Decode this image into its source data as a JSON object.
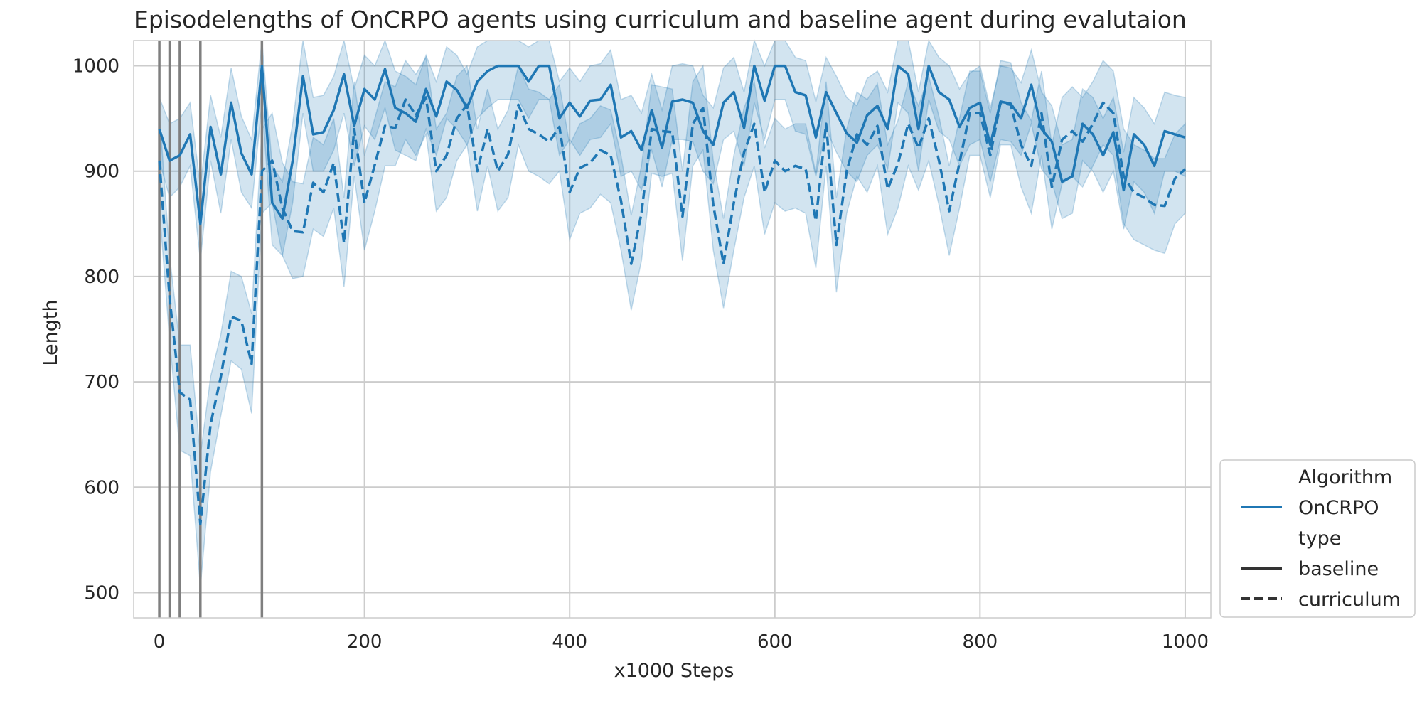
{
  "chart_data": {
    "type": "line",
    "title": "Episodelengths of OnCRPO agents using curriculum and baseline agent during evalutaion",
    "xlabel": "x1000 Steps",
    "ylabel": "Length",
    "xlim": [
      -25,
      1025
    ],
    "ylim": [
      476,
      1024
    ],
    "xticks": [
      0,
      200,
      400,
      600,
      800,
      1000
    ],
    "yticks": [
      500,
      600,
      700,
      800,
      900,
      1000
    ],
    "grid": true,
    "legend_position": "right-bottom, outside plot",
    "legend": {
      "entries": [
        {
          "label": "Algorithm",
          "kind": "header"
        },
        {
          "label": "OnCRPO",
          "kind": "color",
          "color": "#1f77b4"
        },
        {
          "label": "type",
          "kind": "header"
        },
        {
          "label": "baseline",
          "kind": "solid",
          "color": "#333333"
        },
        {
          "label": "curriculum",
          "kind": "dashed",
          "color": "#333333"
        }
      ]
    },
    "vertical_lines": [
      0,
      10,
      20,
      40,
      100
    ],
    "colors": {
      "series": "#1f77b4",
      "band": "#1f77b4",
      "vline": "#7f7f7f",
      "grid": "#cccccc"
    },
    "x": [
      0,
      10,
      20,
      30,
      40,
      50,
      60,
      70,
      80,
      90,
      100,
      110,
      120,
      130,
      140,
      150,
      160,
      170,
      180,
      190,
      200,
      210,
      220,
      230,
      240,
      250,
      260,
      270,
      280,
      290,
      300,
      310,
      320,
      330,
      340,
      350,
      360,
      370,
      380,
      390,
      400,
      410,
      420,
      430,
      440,
      450,
      460,
      470,
      480,
      490,
      500,
      510,
      520,
      530,
      540,
      550,
      560,
      570,
      580,
      590,
      600,
      610,
      620,
      630,
      640,
      650,
      660,
      670,
      680,
      690,
      700,
      710,
      720,
      730,
      740,
      750,
      760,
      770,
      780,
      790,
      800,
      810,
      820,
      830,
      840,
      850,
      860,
      870,
      880,
      890,
      900,
      910,
      920,
      930,
      940,
      950,
      960,
      970,
      980,
      990,
      1000
    ],
    "series": [
      {
        "name": "baseline",
        "style": "solid",
        "values": [
          940,
          910,
          915,
          935,
          850,
          942,
          897,
          965,
          917,
          897,
          1000,
          870,
          855,
          910,
          990,
          935,
          937,
          958,
          992,
          943,
          978,
          968,
          997,
          960,
          955,
          947,
          978,
          952,
          985,
          977,
          960,
          985,
          995,
          1000,
          1000,
          1000,
          985,
          1000,
          1000,
          950,
          965,
          952,
          967,
          968,
          982,
          932,
          938,
          920,
          958,
          922,
          966,
          968,
          965,
          938,
          925,
          965,
          975,
          941,
          1000,
          967,
          1000,
          1000,
          975,
          972,
          932,
          975,
          955,
          936,
          927,
          953,
          962,
          940,
          1000,
          992,
          940,
          1000,
          975,
          968,
          942,
          960,
          965,
          925,
          966,
          964,
          950,
          982,
          940,
          928,
          890,
          895,
          945,
          935,
          915,
          937,
          882,
          935,
          925,
          905,
          938,
          935,
          932
        ],
        "lower": [
          910,
          875,
          885,
          905,
          815,
          910,
          860,
          930,
          880,
          865,
          965,
          830,
          820,
          870,
          955,
          900,
          900,
          920,
          955,
          905,
          943,
          930,
          960,
          920,
          915,
          910,
          940,
          915,
          950,
          940,
          925,
          950,
          960,
          968,
          968,
          968,
          950,
          968,
          968,
          915,
          930,
          915,
          930,
          932,
          945,
          895,
          900,
          882,
          920,
          885,
          930,
          930,
          928,
          900,
          888,
          930,
          938,
          905,
          965,
          930,
          968,
          968,
          938,
          935,
          895,
          940,
          918,
          900,
          890,
          915,
          925,
          902,
          965,
          955,
          900,
          968,
          938,
          930,
          905,
          925,
          930,
          890,
          930,
          928,
          915,
          945,
          902,
          890,
          855,
          860,
          910,
          900,
          880,
          900,
          845,
          890,
          880,
          860,
          900,
          900,
          895
        ],
        "upper": [
          970,
          945,
          950,
          965,
          885,
          972,
          932,
          998,
          952,
          930,
          1024,
          905,
          890,
          945,
          1024,
          970,
          972,
          990,
          1024,
          978,
          1010,
          1000,
          1024,
          995,
          990,
          982,
          1010,
          985,
          1018,
          1010,
          992,
          1018,
          1024,
          1024,
          1024,
          1024,
          1018,
          1024,
          1024,
          985,
          998,
          985,
          1000,
          1002,
          1015,
          968,
          972,
          955,
          992,
          958,
          1000,
          1002,
          1000,
          972,
          960,
          998,
          1008,
          975,
          1024,
          1000,
          1024,
          1024,
          1008,
          1005,
          966,
          1008,
          990,
          970,
          962,
          988,
          995,
          975,
          1024,
          1024,
          975,
          1024,
          1008,
          1000,
          978,
          993,
          1000,
          960,
          1000,
          998,
          984,
          1015,
          975,
          962,
          925,
          930,
          978,
          970,
          950,
          970,
          918,
          970,
          960,
          945,
          975,
          972,
          970
        ]
      },
      {
        "name": "curriculum",
        "style": "dashed",
        "values": [
          910,
          780,
          690,
          683,
          565,
          660,
          705,
          762,
          758,
          717,
          900,
          910,
          865,
          843,
          842,
          889,
          880,
          908,
          832,
          940,
          870,
          906,
          943,
          941,
          968,
          953,
          970,
          900,
          915,
          950,
          963,
          900,
          940,
          900,
          916,
          963,
          940,
          935,
          928,
          942,
          880,
          903,
          908,
          920,
          915,
          872,
          812,
          860,
          940,
          938,
          937,
          857,
          945,
          960,
          868,
          812,
          870,
          918,
          945,
          880,
          910,
          900,
          905,
          902,
          853,
          945,
          830,
          900,
          935,
          925,
          943,
          883,
          907,
          945,
          922,
          950,
          910,
          862,
          908,
          955,
          955,
          915,
          965,
          963,
          925,
          905,
          955,
          885,
          930,
          938,
          928,
          945,
          965,
          955,
          895,
          880,
          875,
          868,
          867,
          893,
          902
        ],
        "lower": [
          865,
          740,
          635,
          630,
          505,
          615,
          668,
          720,
          712,
          670,
          860,
          870,
          820,
          798,
          800,
          845,
          838,
          865,
          790,
          895,
          825,
          862,
          905,
          905,
          930,
          915,
          935,
          862,
          875,
          910,
          925,
          862,
          905,
          862,
          875,
          925,
          900,
          895,
          888,
          900,
          835,
          860,
          865,
          878,
          870,
          825,
          768,
          815,
          898,
          895,
          898,
          815,
          905,
          920,
          825,
          770,
          825,
          875,
          905,
          840,
          870,
          862,
          865,
          860,
          808,
          905,
          785,
          860,
          895,
          880,
          905,
          840,
          865,
          905,
          882,
          910,
          868,
          820,
          865,
          915,
          915,
          875,
          925,
          925,
          885,
          860,
          915,
          845,
          888,
          895,
          885,
          905,
          925,
          915,
          850,
          835,
          830,
          825,
          822,
          850,
          860
        ],
        "upper": [
          958,
          820,
          735,
          735,
          630,
          705,
          745,
          805,
          800,
          765,
          940,
          955,
          908,
          890,
          888,
          932,
          925,
          950,
          875,
          985,
          915,
          950,
          985,
          980,
          1005,
          992,
          1008,
          940,
          955,
          990,
          1000,
          940,
          978,
          940,
          958,
          1000,
          978,
          975,
          968,
          982,
          925,
          945,
          950,
          962,
          958,
          915,
          858,
          905,
          982,
          980,
          978,
          900,
          985,
          1000,
          910,
          855,
          915,
          960,
          985,
          922,
          950,
          940,
          945,
          945,
          898,
          985,
          875,
          940,
          975,
          968,
          983,
          925,
          948,
          985,
          962,
          990,
          952,
          905,
          950,
          995,
          995,
          955,
          1005,
          1003,
          965,
          948,
          995,
          925,
          970,
          980,
          970,
          985,
          1005,
          995,
          940,
          925,
          920,
          912,
          912,
          935,
          945
        ]
      }
    ]
  }
}
